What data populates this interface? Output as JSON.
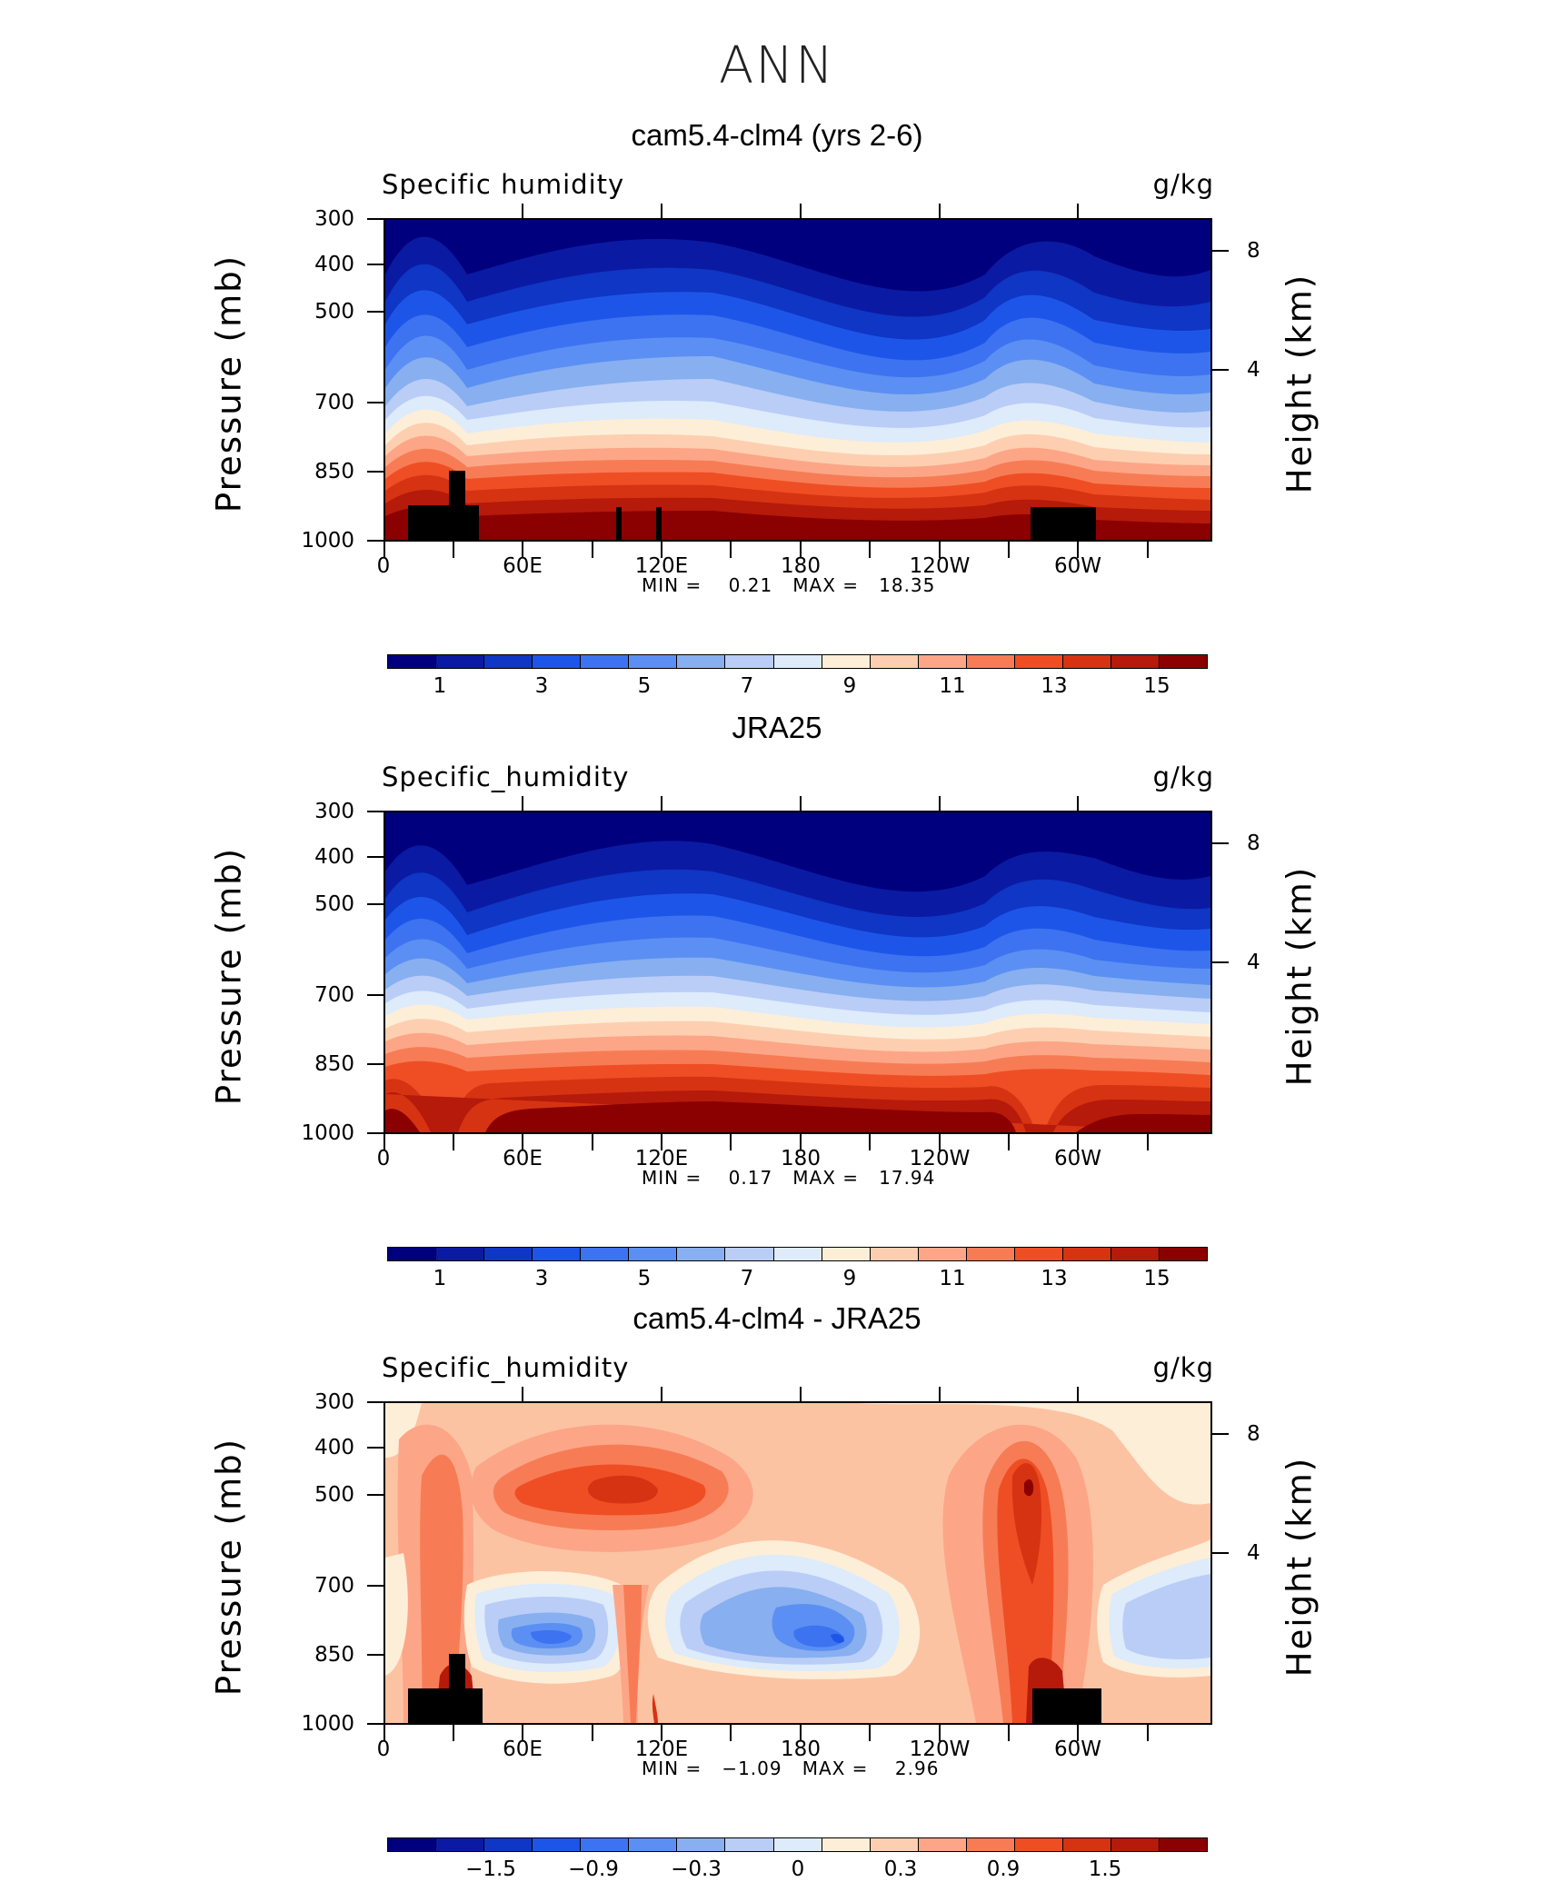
{
  "figure": {
    "title": "ANN"
  },
  "chart_data": [
    {
      "type": "contour",
      "title": "cam5.4-clm4 (yrs 2-6)",
      "variable": "Specific humidity",
      "units": "g/kg",
      "ylabel": "Pressure (mb)",
      "ylabel_right": "Height (km)",
      "xticks": [
        "0",
        "60E",
        "120E",
        "180",
        "120W",
        "60W"
      ],
      "yticks": [
        "300",
        "400",
        "500",
        "700",
        "850",
        "1000"
      ],
      "height_ticks": [
        "8",
        "4"
      ],
      "min_label": "MIN =",
      "min": "0.21",
      "max_label": "MAX =",
      "max": "18.35",
      "colorbar_labels": [
        "1",
        "3",
        "5",
        "7",
        "9",
        "11",
        "13",
        "15"
      ],
      "colorbar_colors": [
        "#00007f",
        "#0b1aa2",
        "#0f36c4",
        "#1e55e9",
        "#3d73f0",
        "#5b8ff3",
        "#88afef",
        "#b9cdf7",
        "#ddebfb",
        "#fdeed8",
        "#fdcfb0",
        "#fca687",
        "#f77c55",
        "#ef4e24",
        "#d63313",
        "#b51a0a",
        "#8b0000"
      ]
    },
    {
      "type": "contour",
      "title": "JRA25",
      "variable": "Specific_humidity",
      "units": "g/kg",
      "ylabel": "Pressure (mb)",
      "ylabel_right": "Height (km)",
      "xticks": [
        "0",
        "60E",
        "120E",
        "180",
        "120W",
        "60W"
      ],
      "yticks": [
        "300",
        "400",
        "500",
        "700",
        "850",
        "1000"
      ],
      "height_ticks": [
        "8",
        "4"
      ],
      "min_label": "MIN =",
      "min": "0.17",
      "max_label": "MAX =",
      "max": "17.94",
      "colorbar_labels": [
        "1",
        "3",
        "5",
        "7",
        "9",
        "11",
        "13",
        "15"
      ],
      "colorbar_colors": [
        "#00007f",
        "#0b1aa2",
        "#0f36c4",
        "#1e55e9",
        "#3d73f0",
        "#5b8ff3",
        "#88afef",
        "#b9cdf7",
        "#ddebfb",
        "#fdeed8",
        "#fdcfb0",
        "#fca687",
        "#f77c55",
        "#ef4e24",
        "#d63313",
        "#b51a0a",
        "#8b0000"
      ]
    },
    {
      "type": "contour",
      "title": "cam5.4-clm4 - JRA25",
      "variable": "Specific_humidity",
      "units": "g/kg",
      "ylabel": "Pressure (mb)",
      "ylabel_right": "Height (km)",
      "xticks": [
        "0",
        "60E",
        "120E",
        "180",
        "120W",
        "60W"
      ],
      "yticks": [
        "300",
        "400",
        "500",
        "700",
        "850",
        "1000"
      ],
      "height_ticks": [
        "8",
        "4"
      ],
      "min_label": "MIN =",
      "min": "−1.09",
      "max_label": "MAX =",
      "max": "2.96",
      "colorbar_labels": [
        "−1.5",
        "−0.9",
        "−0.3",
        "0",
        "0.3",
        "0.9",
        "1.5"
      ],
      "colorbar_colors": [
        "#00007f",
        "#0b1aa2",
        "#0f36c4",
        "#1e55e9",
        "#3d73f0",
        "#5b8ff3",
        "#88afef",
        "#b9cdf7",
        "#ddebfb",
        "#fdeed8",
        "#fdcfb0",
        "#fca687",
        "#f77c55",
        "#ef4e24",
        "#d63313",
        "#b51a0a",
        "#8b0000"
      ]
    }
  ]
}
